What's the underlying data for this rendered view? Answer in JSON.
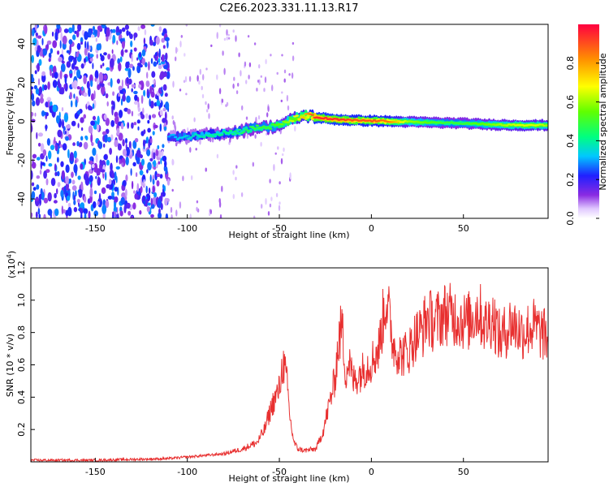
{
  "title": "C2E6.2023.331.11.13.R17",
  "chart_data": [
    {
      "type": "heatmap",
      "title": "C2E6.2023.331.11.13.R17",
      "xlabel": "Height of straight line (km)",
      "ylabel": "Frequency (Hz)",
      "xlim": [
        -185,
        96
      ],
      "ylim": [
        -50,
        50
      ],
      "xticks": [
        -150,
        -100,
        -50,
        0,
        50
      ],
      "yticks": [
        -40,
        -20,
        0,
        20,
        40
      ],
      "colorbar": {
        "label": "Normalized spectral amplitude",
        "range": [
          0,
          1
        ],
        "ticks": [
          0.0,
          0.2,
          0.4,
          0.6,
          0.8
        ],
        "tick_labels": [
          "0.0",
          "0.2",
          "0.4",
          "0.6",
          "0.8"
        ]
      },
      "ridge": {
        "x": [
          -110,
          -100,
          -90,
          -80,
          -70,
          -62,
          -55,
          -50,
          -45,
          -40,
          -35,
          -30,
          -20,
          -10,
          0,
          10,
          20,
          30,
          40,
          50,
          60,
          70,
          80,
          90,
          96
        ],
        "frequency": [
          -8,
          -8,
          -7,
          -6,
          -5,
          -3,
          -3,
          -2,
          0,
          2,
          3,
          2,
          1,
          0.5,
          0.3,
          0,
          -0.3,
          -0.5,
          -0.8,
          -1,
          -1.5,
          -1.8,
          -2,
          -2,
          -2
        ],
        "amplitude": [
          0.3,
          0.35,
          0.4,
          0.42,
          0.45,
          0.5,
          0.5,
          0.55,
          0.6,
          0.7,
          0.8,
          0.95,
          0.95,
          0.9,
          0.9,
          0.85,
          0.6,
          0.55,
          0.5,
          0.5,
          0.55,
          0.6,
          0.65,
          0.65,
          0.6
        ]
      },
      "noise_region": {
        "x_from": -185,
        "x_to": -110,
        "amplitude_range": [
          0.05,
          0.3
        ]
      }
    },
    {
      "type": "line",
      "xlabel": "Height of straight line (km)",
      "ylabel": "SNR (10 * v/v)",
      "y_multiplier": "(x10",
      "y_multiplier_exp": "4",
      "y_multiplier_close": ")",
      "xlim": [
        -185,
        96
      ],
      "ylim": [
        0,
        1.2
      ],
      "xticks": [
        -150,
        -100,
        -50,
        0,
        50
      ],
      "yticks": [
        0.2,
        0.4,
        0.6,
        0.8,
        1.0,
        1.2
      ],
      "ytick_labels": [
        "0.2",
        "0.4",
        "0.6",
        "0.8",
        "1.0",
        "1.2"
      ],
      "color": "#e83030",
      "series": [
        {
          "name": "SNR",
          "x": [
            -185,
            -170,
            -150,
            -130,
            -110,
            -100,
            -90,
            -80,
            -70,
            -62,
            -58,
            -54,
            -50,
            -48,
            -46,
            -44,
            -42,
            -40,
            -36,
            -30,
            -26,
            -22,
            -20,
            -18,
            -16,
            -14,
            -12,
            -10,
            -6,
            -2,
            0,
            4,
            8,
            12,
            16,
            20,
            24,
            28,
            30,
            34,
            40,
            46,
            52,
            58,
            62,
            66,
            70,
            76,
            82,
            88,
            92,
            96
          ],
          "y": [
            0.01,
            0.01,
            0.01,
            0.015,
            0.02,
            0.03,
            0.04,
            0.05,
            0.08,
            0.12,
            0.2,
            0.35,
            0.45,
            0.62,
            0.5,
            0.25,
            0.12,
            0.08,
            0.07,
            0.08,
            0.2,
            0.4,
            0.5,
            0.72,
            0.85,
            0.55,
            0.62,
            0.5,
            0.55,
            0.6,
            0.62,
            0.7,
            1.02,
            0.72,
            0.66,
            0.68,
            0.78,
            0.82,
            0.9,
            0.86,
            0.92,
            0.9,
            0.86,
            0.94,
            0.84,
            0.9,
            0.76,
            0.86,
            0.8,
            0.84,
            0.8,
            0.76
          ]
        }
      ]
    }
  ]
}
